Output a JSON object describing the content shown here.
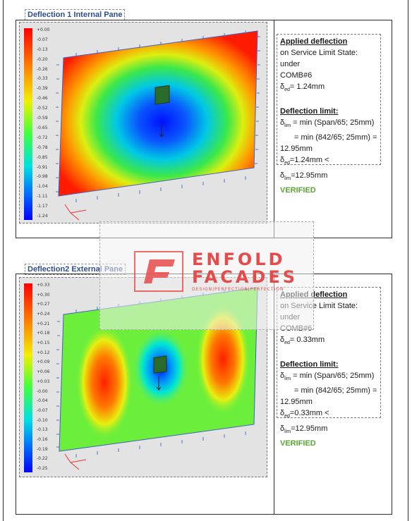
{
  "section1": {
    "title": "Deflection 1 Internal Pane",
    "legend_ticks": [
      "+0.00",
      "-0.07",
      "-0.13",
      "-0.20",
      "-0.26",
      "-0.33",
      "-0.39",
      "-0.46",
      "-0.52",
      "-0.59",
      "-0.65",
      "-0.72",
      "-0.78",
      "-0.85",
      "-0.91",
      "-0.98",
      "-1.04",
      "-1.11",
      "-1.17",
      "-1.24"
    ],
    "applied_heading": "Applied deflection",
    "applied_line1": "on Service Limit State: under",
    "applied_line2": "COMB#6",
    "delta_ed": "δ",
    "ed_sub": "ed",
    "ed_value": "= 1.24mm",
    "limit_heading": "Deflection limit:",
    "lim_sub": "lim",
    "lim_line1": " = min (Span/65; 25mm)",
    "lim_line2": "= min (842/65; 25mm) =",
    "lim_line3": "12.95mm",
    "check_part1": "=1.24mm < δ",
    "check_part2": "=12.95mm",
    "verified": "VERIFIED"
  },
  "section2": {
    "title": "Deflection2 External Pane",
    "legend_ticks": [
      "+0.33",
      "+0.30",
      "+0.27",
      "+0.24",
      "+0.21",
      "+0.18",
      "+0.15",
      "+0.12",
      "+0.09",
      "+0.06",
      "+0.03",
      "-0.00",
      "-0.04",
      "-0.07",
      "-0.10",
      "-0.13",
      "-0.16",
      "-0.19",
      "-0.22",
      "-0.25"
    ],
    "applied_heading": "Applied deflection",
    "applied_line1": "on Service Limit State: under",
    "applied_line2": "COMB#6",
    "delta_ed": "δ",
    "ed_sub": "ed",
    "ed_value": "= 0.33mm",
    "limit_heading": "Deflection limit:",
    "lim_sub": "lim",
    "lim_line1": " = min (Span/65; 25mm)",
    "lim_line2": "= min (842/65; 25mm) =",
    "lim_line3": "12.95mm",
    "check_part1": "=0.33mm < δ",
    "check_part2": "=12.95mm",
    "verified": "VERIFIED"
  },
  "watermark": {
    "line1": "ENFOLD",
    "line2": "FACADES",
    "tagline": "DESIGN|PERFECTION|PERFECTION"
  }
}
